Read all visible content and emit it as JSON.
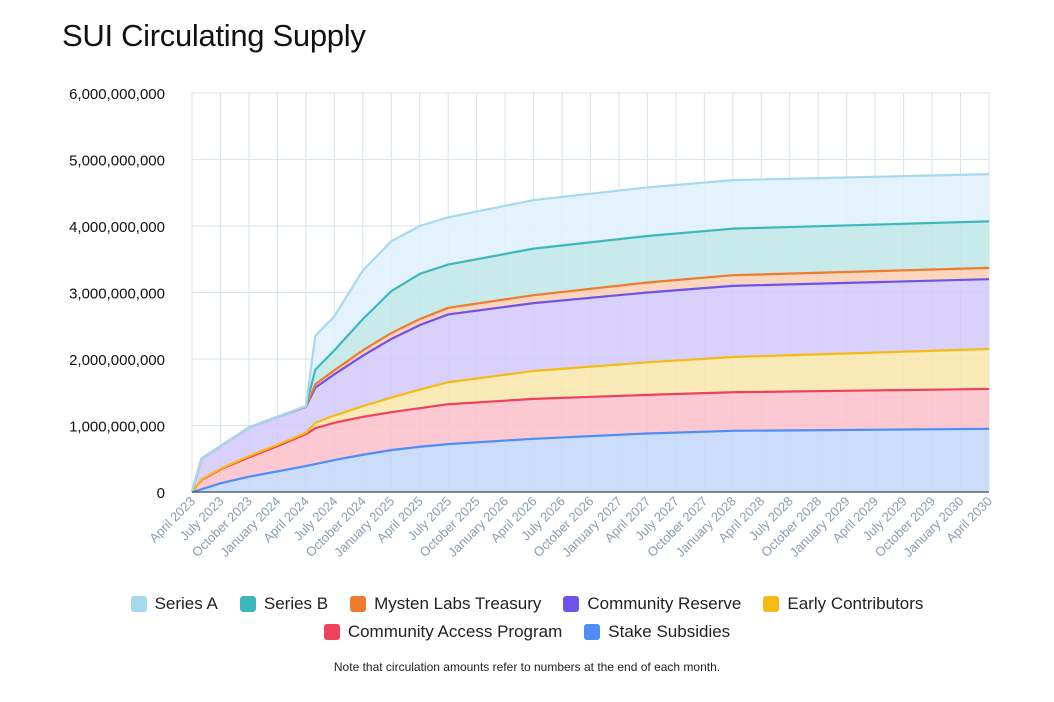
{
  "chart_data": {
    "type": "area",
    "stacked": true,
    "title": "SUI Circulating Supply",
    "xlabel": "",
    "ylabel": "",
    "ylim": [
      0,
      6000000000
    ],
    "yticks": [
      0,
      1000000000,
      2000000000,
      3000000000,
      4000000000,
      5000000000,
      6000000000
    ],
    "ytick_labels": [
      "0",
      "1,000,000,000",
      "2,000,000,000",
      "3,000,000,000",
      "4,000,000,000",
      "5,000,000,000",
      "6,000,000,000"
    ],
    "x_labels": [
      "April 2023",
      "July 2023",
      "October 2023",
      "January 2024",
      "April 2024",
      "July 2024",
      "October 2024",
      "January 2025",
      "April 2025",
      "July 2025",
      "October 2025",
      "January 2026",
      "April 2026",
      "July 2026",
      "October 2026",
      "January 2027",
      "April 2027",
      "July 2027",
      "October 2027",
      "January 2028",
      "April 2028",
      "July 2028",
      "October 2028",
      "January 2029",
      "April 2029",
      "July 2029",
      "October 2029",
      "January 2030",
      "April 2030"
    ],
    "x_month_index": [
      0,
      1,
      3,
      6,
      9,
      12,
      13,
      15,
      18,
      21,
      24,
      27,
      36,
      48,
      57,
      84
    ],
    "grid": true,
    "legend_position": "bottom",
    "series": [
      {
        "name": "Stake Subsidies",
        "color": "#4f8ef5",
        "fill": "#c3d7fb",
        "cumulative": [
          0,
          40000000,
          130000000,
          230000000,
          310000000,
          390000000,
          420000000,
          480000000,
          560000000,
          630000000,
          680000000,
          720000000,
          800000000,
          880000000,
          920000000,
          950000000
        ]
      },
      {
        "name": "Community Access Program",
        "color": "#f0405e",
        "fill": "#fbbfca",
        "cumulative": [
          0,
          180000000,
          340000000,
          520000000,
          690000000,
          870000000,
          960000000,
          1040000000,
          1130000000,
          1200000000,
          1260000000,
          1320000000,
          1400000000,
          1460000000,
          1500000000,
          1550000000
        ]
      },
      {
        "name": "Early Contributors",
        "color": "#f5bb12",
        "fill": "#f9e6ab",
        "cumulative": [
          0,
          190000000,
          350000000,
          540000000,
          710000000,
          890000000,
          1040000000,
          1150000000,
          1290000000,
          1420000000,
          1540000000,
          1650000000,
          1820000000,
          1950000000,
          2030000000,
          2150000000
        ]
      },
      {
        "name": "Community Reserve",
        "color": "#6f52e8",
        "fill": "#d2c8fb",
        "cumulative": [
          0,
          500000000,
          690000000,
          970000000,
          1130000000,
          1280000000,
          1570000000,
          1770000000,
          2050000000,
          2300000000,
          2510000000,
          2670000000,
          2840000000,
          3000000000,
          3100000000,
          3200000000
        ]
      },
      {
        "name": "Mysten Labs Treasury",
        "color": "#f07a2e",
        "fill": "#f8cfb2",
        "cumulative": [
          0,
          500000000,
          690000000,
          970000000,
          1130000000,
          1280000000,
          1620000000,
          1830000000,
          2130000000,
          2390000000,
          2600000000,
          2770000000,
          2960000000,
          3150000000,
          3260000000,
          3370000000
        ]
      },
      {
        "name": "Series B",
        "color": "#3cb8bc",
        "fill": "#bfe6e6",
        "cumulative": [
          0,
          500000000,
          690000000,
          970000000,
          1130000000,
          1290000000,
          1840000000,
          2130000000,
          2600000000,
          3020000000,
          3280000000,
          3420000000,
          3660000000,
          3850000000,
          3960000000,
          4070000000
        ]
      },
      {
        "name": "Series A",
        "color": "#a8d8f0",
        "fill": "#dff0fb",
        "cumulative": [
          0,
          500000000,
          690000000,
          970000000,
          1130000000,
          1290000000,
          2350000000,
          2640000000,
          3330000000,
          3770000000,
          4000000000,
          4130000000,
          4390000000,
          4580000000,
          4690000000,
          4780000000
        ]
      }
    ]
  },
  "legend": {
    "row1": [
      "Series A",
      "Series B",
      "Mysten Labs Treasury",
      "Community Reserve",
      "Early Contributors"
    ],
    "row2": [
      "Community Access Program",
      "Stake Subsidies"
    ]
  },
  "note": "Note that circulation amounts refer to numbers at the end of each month."
}
